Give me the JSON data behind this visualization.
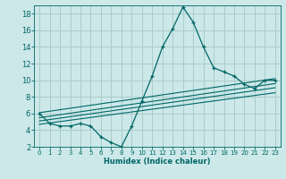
{
  "xlabel": "Humidex (Indice chaleur)",
  "bg_color": "#cce8e8",
  "grid_color": "#aacccc",
  "line_color": "#006666",
  "xlim": [
    -0.5,
    23.5
  ],
  "ylim": [
    2,
    19
  ],
  "xticks": [
    0,
    1,
    2,
    3,
    4,
    5,
    6,
    7,
    8,
    9,
    10,
    11,
    12,
    13,
    14,
    15,
    16,
    17,
    18,
    19,
    20,
    21,
    22,
    23
  ],
  "yticks": [
    2,
    4,
    6,
    8,
    10,
    12,
    14,
    16,
    18
  ],
  "main_x": [
    0,
    1,
    2,
    3,
    4,
    5,
    6,
    7,
    8,
    9,
    10,
    11,
    12,
    13,
    14,
    15,
    16,
    17,
    18,
    19,
    20,
    21,
    22,
    23
  ],
  "main_y": [
    6,
    4.8,
    4.5,
    4.5,
    4.8,
    4.5,
    3.2,
    2.5,
    2.0,
    4.5,
    7.5,
    10.5,
    14.0,
    16.2,
    18.8,
    17.0,
    14.0,
    11.5,
    11.0,
    10.5,
    9.5,
    9.0,
    10.0,
    10.0
  ],
  "reg_lines": [
    {
      "x0": 0,
      "y0": 6.1,
      "x1": 23,
      "y1": 10.2
    },
    {
      "x0": 0,
      "y0": 5.5,
      "x1": 23,
      "y1": 9.6
    },
    {
      "x0": 0,
      "y0": 5.1,
      "x1": 23,
      "y1": 9.1
    },
    {
      "x0": 0,
      "y0": 4.7,
      "x1": 23,
      "y1": 8.5
    }
  ]
}
